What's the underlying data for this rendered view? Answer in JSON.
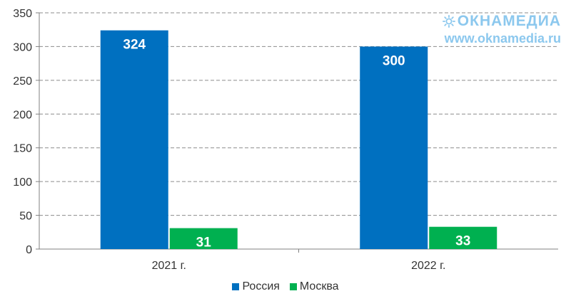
{
  "watermark": {
    "brand": "ОКНАМЕДИА",
    "url": "www.oknamedia.ru"
  },
  "colors": {
    "Россия": "#0070c0",
    "Москва": "#00b050",
    "grid": "#8c8c8c",
    "axis": "#808080"
  },
  "chart_data": {
    "type": "bar",
    "title": "",
    "xlabel": "",
    "ylabel": "",
    "categories": [
      "2021 г.",
      "2022 г."
    ],
    "series": [
      {
        "name": "Россия",
        "values": [
          324,
          300
        ]
      },
      {
        "name": "Москва",
        "values": [
          31,
          33
        ]
      }
    ],
    "ylim": [
      0,
      350
    ],
    "yticks": [
      0,
      50,
      100,
      150,
      200,
      250,
      300,
      350
    ],
    "grid": "horizontal dashed",
    "legend": "bottom",
    "data_labels": true
  }
}
